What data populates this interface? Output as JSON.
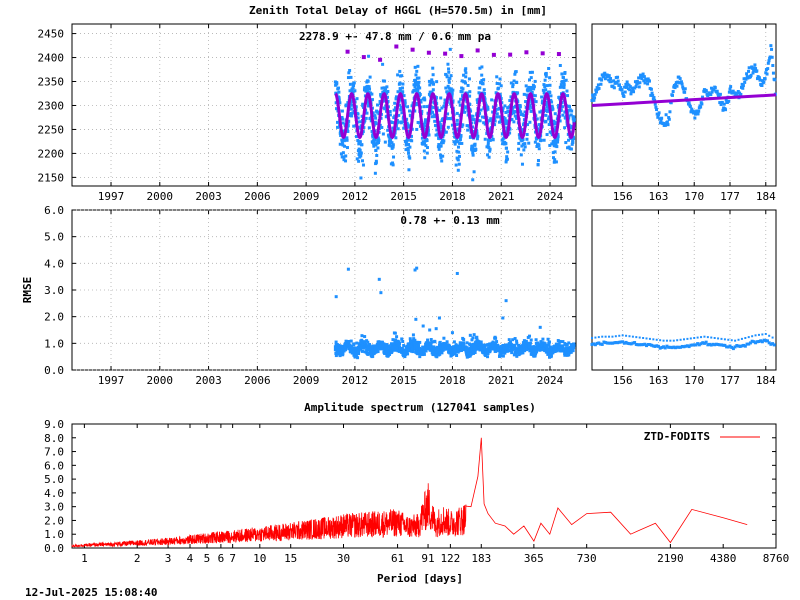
{
  "footer": {
    "timestamp": "12-Jul-2025 15:08:40"
  },
  "colors": {
    "obs": "#1e90ff",
    "model": "#9400d3",
    "spectrum": "#ff0000"
  },
  "chart_data": [
    {
      "type": "scatter",
      "panel": "ztd-long",
      "title": "Zenith Total Delay of HGGL (H=570.5m) in [mm]",
      "annotation": "2278.9 +-  47.8 mm /  0.6 mm pa",
      "xlim": [
        1994.6,
        2025.6
      ],
      "ylim": [
        2132,
        2470
      ],
      "xticks": [
        1997,
        2000,
        2003,
        2006,
        2009,
        2012,
        2015,
        2018,
        2021,
        2024
      ],
      "yticks": [
        2150,
        2200,
        2250,
        2300,
        2350,
        2400,
        2450
      ],
      "grid": true,
      "series": [
        {
          "kind": "observations",
          "x_range": [
            2010.8,
            2025.5
          ],
          "mean": 2278.9,
          "annual_amplitude": 47.8,
          "trend_per_year": 0.6
        },
        {
          "kind": "model",
          "x_range": [
            2010.8,
            2025.5
          ],
          "mean": 2278.9,
          "annual_amplitude": 47.8
        }
      ]
    },
    {
      "type": "scatter",
      "panel": "ztd-recent",
      "xlim": [
        150,
        186
      ],
      "ylim": [
        2132,
        2470
      ],
      "xticks": [
        156,
        163,
        170,
        177,
        184
      ],
      "series": [
        {
          "kind": "observations",
          "x": [
            150,
            151,
            152,
            153,
            154,
            155,
            156,
            157,
            158,
            159,
            160,
            161,
            162,
            163,
            164,
            165,
            166,
            167,
            168,
            169,
            170,
            171,
            172,
            173,
            174,
            175,
            176,
            177,
            178,
            179,
            180,
            181,
            182,
            183,
            184,
            185,
            186
          ],
          "y": [
            2305,
            2330,
            2360,
            2365,
            2340,
            2350,
            2325,
            2340,
            2330,
            2345,
            2360,
            2350,
            2320,
            2280,
            2260,
            2270,
            2340,
            2355,
            2330,
            2300,
            2280,
            2290,
            2330,
            2320,
            2340,
            2310,
            2290,
            2335,
            2325,
            2320,
            2360,
            2370,
            2380,
            2345,
            2360,
            2420,
            2320
          ]
        },
        {
          "kind": "model",
          "x": [
            150,
            186
          ],
          "y": [
            2300,
            2322
          ]
        }
      ]
    },
    {
      "type": "scatter",
      "panel": "rmse-long",
      "ylabel": "RMSE",
      "annotation": "0.78 +-  0.13 mm",
      "xlim": [
        1994.6,
        2025.6
      ],
      "ylim": [
        0,
        6
      ],
      "xticks": [
        1997,
        2000,
        2003,
        2006,
        2009,
        2012,
        2015,
        2018,
        2021,
        2024
      ],
      "yticks": [
        0.0,
        1.0,
        2.0,
        3.0,
        4.0,
        5.0,
        6.0
      ],
      "ytick_labels": [
        "0.0",
        "1.0",
        "2.0",
        "3.0",
        "4.0",
        "5.0",
        "6.0"
      ],
      "series": [
        {
          "kind": "rmse",
          "x_range": [
            2010.8,
            2025.5
          ],
          "mean": 0.78,
          "spread": 0.13
        },
        {
          "kind": "outliers",
          "x": [
            2010.85,
            2011.6,
            2013.5,
            2013.6,
            2015.7,
            2015.8,
            2015.75,
            2016.2,
            2016.6,
            2017.2,
            2018.3,
            2018.0,
            2017.0,
            2021.3,
            2021.1,
            2023.4,
            2019.1
          ],
          "y": [
            2.75,
            3.78,
            3.4,
            2.9,
            3.75,
            3.82,
            1.9,
            1.65,
            1.5,
            1.95,
            3.62,
            1.4,
            1.55,
            2.6,
            1.95,
            1.6,
            1.3
          ]
        }
      ]
    },
    {
      "type": "scatter",
      "panel": "rmse-recent",
      "xlim": [
        150,
        186
      ],
      "ylim": [
        0,
        6
      ],
      "xticks": [
        156,
        163,
        170,
        177,
        184
      ],
      "series": [
        {
          "kind": "rmse",
          "x": [
            150,
            152,
            154,
            156,
            158,
            160,
            162,
            164,
            166,
            168,
            170,
            172,
            174,
            176,
            178,
            180,
            182,
            184,
            186
          ],
          "y": [
            0.95,
            1.0,
            1.0,
            1.05,
            1.0,
            0.95,
            0.9,
            0.85,
            0.85,
            0.9,
            0.95,
            1.0,
            0.95,
            0.9,
            0.85,
            0.95,
            1.05,
            1.1,
            0.9
          ]
        }
      ]
    },
    {
      "type": "line",
      "panel": "spectrum",
      "title": "Amplitude spectrum (127041 samples)",
      "xlabel": "Period [days]",
      "xscale": "log",
      "xlim": [
        0.85,
        8760
      ],
      "ylim": [
        0,
        9
      ],
      "xticks": [
        1,
        2,
        3,
        4,
        5,
        6,
        7,
        10,
        15,
        30,
        61,
        91,
        122,
        183,
        365,
        730,
        2190,
        4380,
        8760
      ],
      "yticks": [
        0.0,
        1.0,
        2.0,
        3.0,
        4.0,
        5.0,
        6.0,
        7.0,
        8.0,
        9.0
      ],
      "ytick_labels": [
        "0.0",
        "1.0",
        "2.0",
        "3.0",
        "4.0",
        "5.0",
        "6.0",
        "7.0",
        "8.0",
        "9.0"
      ],
      "legend": "top-right",
      "series": [
        {
          "name": "ZTD-FODITS",
          "x": [
            0.85,
            1,
            1.5,
            2,
            3,
            4,
            5,
            7,
            10,
            15,
            20,
            25,
            30,
            40,
            50,
            61,
            70,
            80,
            91,
            100,
            110,
            122,
            140,
            160,
            175,
            183,
            190,
            200,
            220,
            250,
            280,
            320,
            365,
            400,
            450,
            500,
            600,
            730,
            1000,
            1300,
            1800,
            2190,
            2900,
            4380,
            6000
          ],
          "y": [
            0.2,
            0.25,
            0.35,
            0.45,
            0.6,
            0.75,
            0.9,
            1.05,
            1.25,
            1.5,
            1.7,
            1.85,
            2.0,
            2.1,
            2.2,
            2.3,
            1.9,
            2.0,
            3.9,
            2.1,
            2.6,
            2.2,
            2.5,
            3.0,
            5.2,
            8.0,
            3.2,
            2.5,
            1.8,
            1.6,
            1.0,
            1.6,
            0.5,
            1.8,
            1.0,
            2.9,
            1.7,
            2.5,
            2.6,
            1.0,
            1.8,
            0.4,
            2.8,
            2.2,
            1.7
          ]
        }
      ]
    }
  ]
}
